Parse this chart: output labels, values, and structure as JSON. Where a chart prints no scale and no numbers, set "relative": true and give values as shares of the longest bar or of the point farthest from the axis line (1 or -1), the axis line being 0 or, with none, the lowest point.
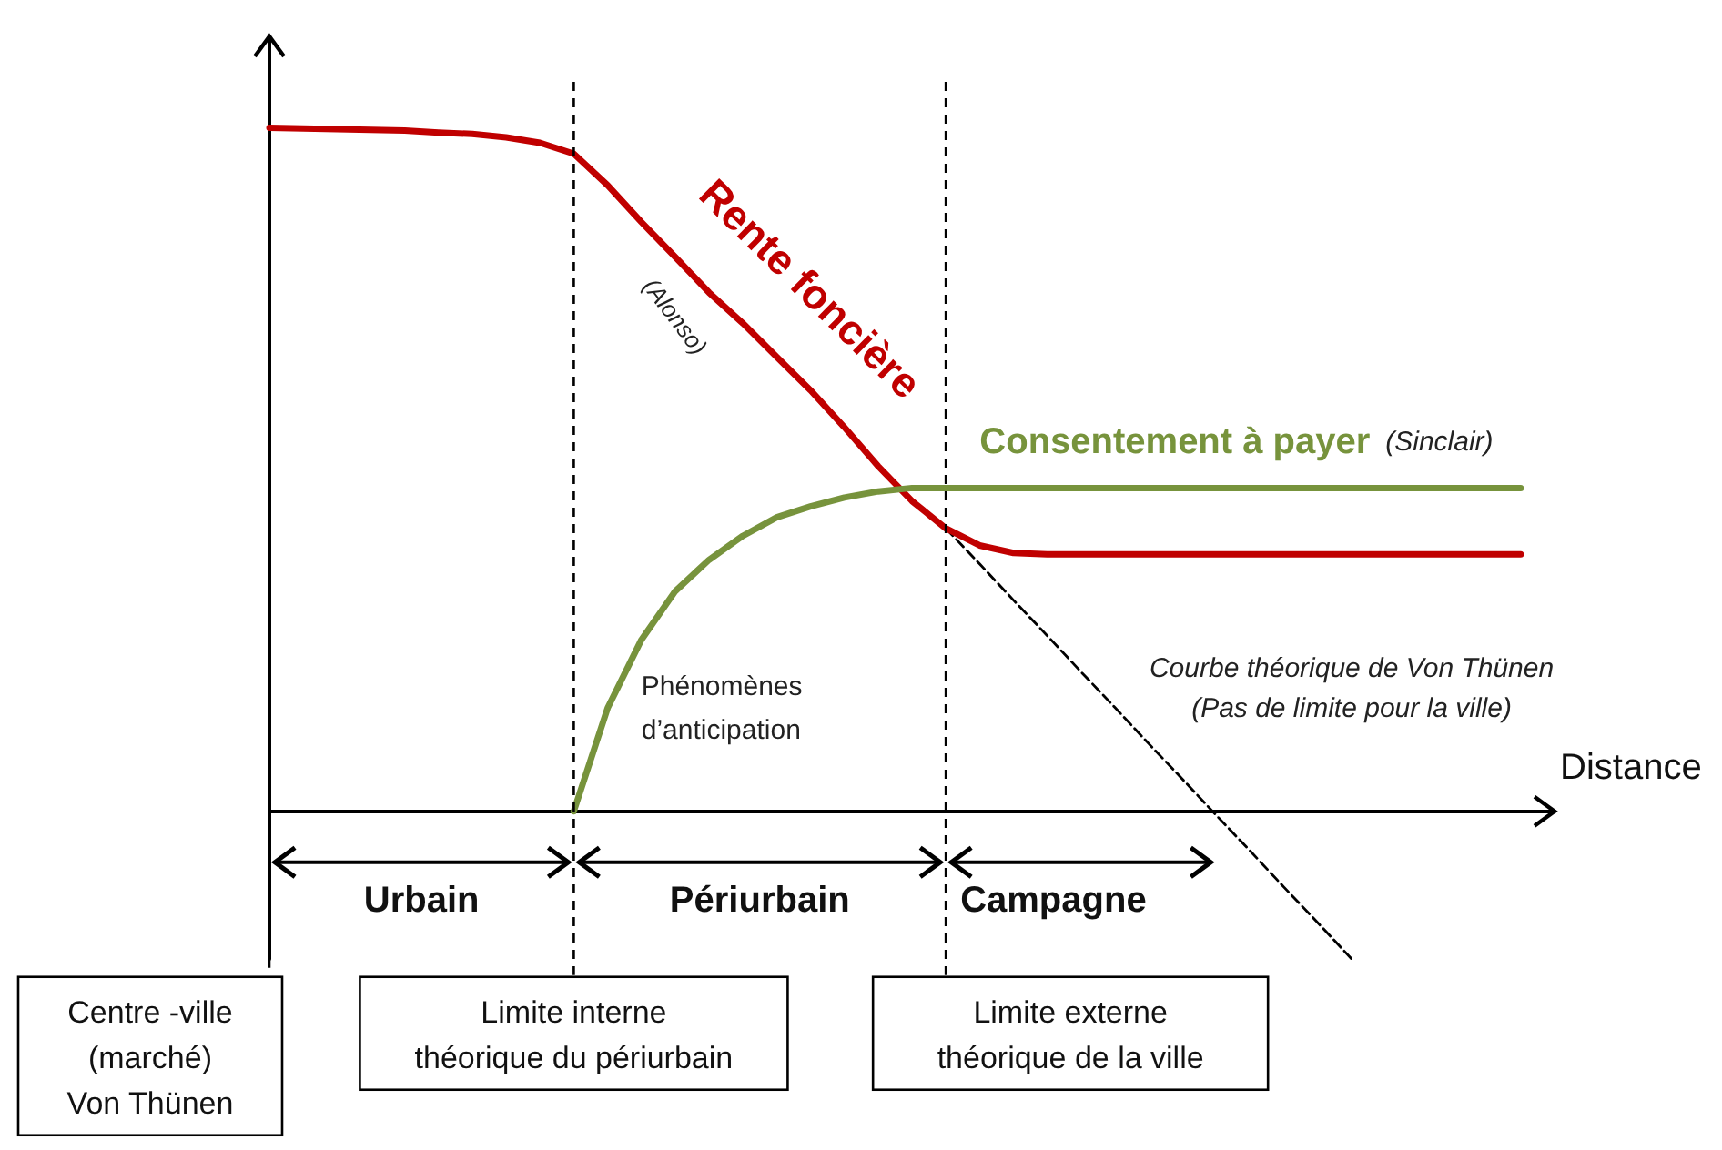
{
  "chart_data": {
    "type": "line",
    "relative": true,
    "xlabel": "Distance",
    "grid": false,
    "legend": false,
    "marker": "none",
    "categories": [
      null,
      null,
      null,
      null,
      null,
      null,
      null,
      null,
      null,
      null,
      null,
      null,
      null,
      null,
      null,
      null,
      null,
      null,
      null,
      null,
      null,
      null,
      null,
      null,
      null,
      null,
      null,
      null,
      null,
      null,
      null,
      null,
      null,
      null,
      null,
      null,
      null,
      null,
      null
    ],
    "series": [
      {
        "name": "Rente foncière",
        "color": "#c00000",
        "values": [
          1.0,
          0.999,
          0.998,
          0.997,
          0.996,
          0.993,
          0.991,
          0.986,
          0.978,
          0.962,
          0.916,
          0.862,
          0.811,
          0.759,
          0.714,
          0.665,
          0.616,
          0.562,
          0.505,
          0.454,
          0.414,
          0.389,
          0.378,
          0.376,
          0.376,
          0.376,
          0.376,
          0.376,
          0.376,
          0.376,
          0.376,
          0.376,
          0.376,
          0.376,
          0.376,
          0.376,
          0.376,
          0.376,
          null
        ]
      },
      {
        "name": "Consentement à payer",
        "color": "#77933c",
        "values": [
          null,
          null,
          null,
          null,
          null,
          null,
          null,
          null,
          null,
          0,
          0.151,
          0.251,
          0.322,
          0.368,
          0.403,
          0.43,
          0.446,
          0.459,
          0.468,
          0.473,
          0.473,
          0.473,
          0.473,
          0.473,
          0.473,
          0.473,
          0.473,
          0.473,
          0.473,
          0.473,
          0.473,
          0.473,
          0.473,
          0.473,
          0.473,
          0.473,
          0.473,
          0.473,
          null
        ]
      },
      {
        "name": "Courbe théorique de Von Thünen\n(Pas de limite pour la ville)",
        "color": "#000000",
        "line_style": "dashed",
        "values": [
          null,
          null,
          null,
          null,
          null,
          null,
          null,
          null,
          null,
          null,
          null,
          null,
          null,
          null,
          null,
          null,
          null,
          null,
          null,
          null,
          0.414,
          0.362,
          0.309,
          0.257,
          0.204,
          0.152,
          0.099,
          0.047,
          -0.006,
          -0.058,
          -0.111,
          -0.163,
          -0.216,
          null,
          null,
          null,
          null,
          null,
          null
        ]
      }
    ],
    "annotations": [
      "(Alonso)",
      "(Sinclair)",
      "Phénomènes\nd’anticipation",
      "Urbain",
      "Périurbain",
      "Campagne",
      "Centre -ville\n(marché)\nVon Thünen",
      "Limite interne\nthéorique du périurbain",
      "Limite externe\nthéorique de la ville"
    ]
  }
}
